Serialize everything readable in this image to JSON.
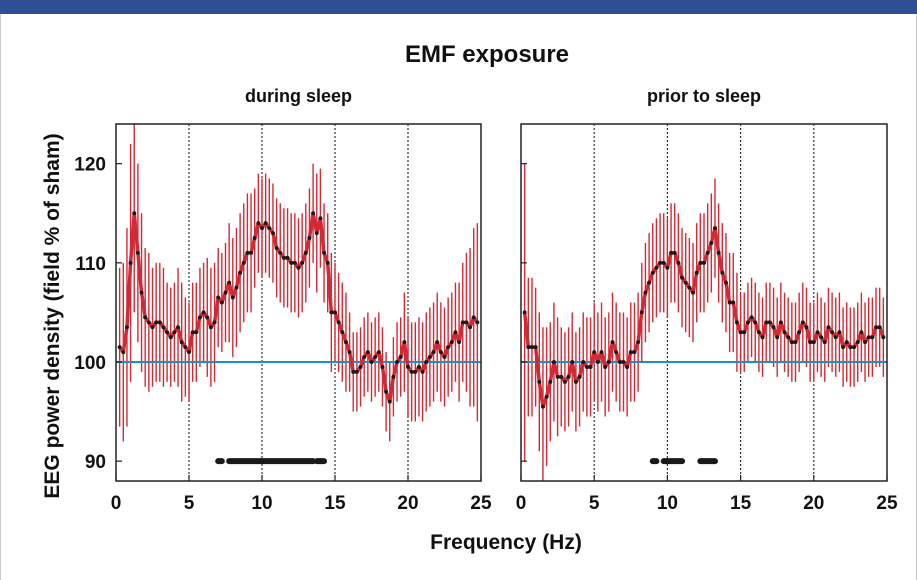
{
  "figure": {
    "title": "EMF exposure",
    "shared_ylabel": "EEG power density (field % of sham)",
    "shared_xlabel": "Frequency (Hz)"
  },
  "colors": {
    "frame_bar": "#2d4f96",
    "errorbar": "#d12a35",
    "line": "#d12a35",
    "marker": "#1a1a1a",
    "baseline": "#1f8fc8",
    "gridline": "#333333"
  },
  "chart_data": [
    {
      "type": "line",
      "subtitle": "during sleep",
      "xlabel": "Frequency (Hz)",
      "ylabel": "EEG power density (field % of sham)",
      "xlim": [
        0,
        25
      ],
      "ylim": [
        88,
        124
      ],
      "xticks": [
        0,
        5,
        10,
        15,
        20,
        25
      ],
      "yticks": [
        90,
        100,
        110,
        120
      ],
      "vertical_gridlines": [
        5,
        10,
        15,
        20
      ],
      "reference_line": 100,
      "series": [
        {
          "x": [
            0.25,
            0.5,
            0.75,
            1,
            1.25,
            1.5,
            1.75,
            2,
            2.25,
            2.5,
            2.75,
            3,
            3.25,
            3.5,
            3.75,
            4,
            4.25,
            4.5,
            4.75,
            5,
            5.25,
            5.5,
            5.75,
            6,
            6.25,
            6.5,
            6.75,
            7,
            7.25,
            7.5,
            7.75,
            8,
            8.25,
            8.5,
            8.75,
            9,
            9.25,
            9.5,
            9.75,
            10,
            10.25,
            10.5,
            10.75,
            11,
            11.25,
            11.5,
            11.75,
            12,
            12.25,
            12.5,
            12.75,
            13,
            13.25,
            13.5,
            13.75,
            14,
            14.25,
            14.5,
            14.75,
            15,
            15.25,
            15.5,
            15.75,
            16,
            16.25,
            16.5,
            16.75,
            17,
            17.25,
            17.5,
            17.75,
            18,
            18.25,
            18.5,
            18.75,
            19,
            19.25,
            19.5,
            19.75,
            20,
            20.25,
            20.5,
            20.75,
            21,
            21.25,
            21.5,
            21.75,
            22,
            22.25,
            22.5,
            22.75,
            23,
            23.25,
            23.5,
            23.75,
            24,
            24.25,
            24.5,
            24.75
          ],
          "y": [
            101.5,
            101,
            103.5,
            110,
            115,
            111,
            107,
            104.5,
            104,
            103.5,
            104,
            104,
            103.5,
            103,
            102.5,
            103,
            103.5,
            102,
            101.5,
            101,
            103,
            103,
            104.5,
            105,
            104.5,
            103.5,
            104,
            106.5,
            106,
            107,
            108,
            106.5,
            107.5,
            109,
            110,
            111,
            111,
            112.5,
            114,
            113.5,
            114,
            113.5,
            113,
            111.5,
            111,
            110.5,
            110.5,
            110,
            110,
            109.5,
            110,
            111,
            112.5,
            115,
            113,
            114.5,
            111,
            110,
            105,
            105,
            104,
            103,
            102,
            101,
            99,
            99,
            99.5,
            100.5,
            101,
            100,
            100.5,
            101,
            99.5,
            97,
            96,
            98.5,
            100,
            100.5,
            102,
            99.5,
            99,
            99,
            99.5,
            99,
            100,
            100.5,
            101,
            102,
            101,
            100.5,
            101.5,
            102,
            103,
            102,
            104,
            104,
            103.5,
            104.5,
            104
          ],
          "err": [
            8,
            9,
            10,
            12,
            10,
            9,
            8,
            7,
            7,
            6,
            6,
            6,
            6,
            5,
            5,
            5,
            6,
            6,
            5,
            5,
            5,
            5,
            5,
            5,
            6,
            6,
            6,
            5,
            5,
            5,
            6,
            6,
            6,
            6,
            6,
            6,
            6,
            5,
            5,
            5,
            5,
            5,
            5,
            5,
            5,
            5,
            5,
            5,
            5,
            5,
            5,
            5,
            5,
            5,
            6,
            5,
            5,
            5,
            6,
            5,
            5,
            5,
            5,
            4,
            4,
            4,
            4,
            4,
            4,
            4,
            4,
            4,
            4,
            4,
            4,
            4,
            4,
            4,
            5,
            5,
            5,
            5,
            5,
            5,
            5,
            5,
            5,
            5,
            5,
            5,
            5,
            5,
            5,
            6,
            6,
            7,
            8,
            9,
            10
          ]
        }
      ],
      "significance_bars": [
        [
          7,
          7.25
        ],
        [
          7.75,
          13.5
        ],
        [
          13.75,
          14.25
        ]
      ]
    },
    {
      "type": "line",
      "subtitle": "prior to sleep",
      "xlabel": "Frequency (Hz)",
      "ylabel": "",
      "xlim": [
        0,
        25
      ],
      "ylim": [
        88,
        124
      ],
      "xticks": [
        0,
        5,
        10,
        15,
        20,
        25
      ],
      "yticks": [
        90,
        100,
        110,
        120
      ],
      "vertical_gridlines": [
        5,
        10,
        15,
        20
      ],
      "reference_line": 100,
      "series": [
        {
          "x": [
            0.25,
            0.5,
            0.75,
            1,
            1.25,
            1.5,
            1.75,
            2,
            2.25,
            2.5,
            2.75,
            3,
            3.25,
            3.5,
            3.75,
            4,
            4.25,
            4.5,
            4.75,
            5,
            5.25,
            5.5,
            5.75,
            6,
            6.25,
            6.5,
            6.75,
            7,
            7.25,
            7.5,
            7.75,
            8,
            8.25,
            8.5,
            8.75,
            9,
            9.25,
            9.5,
            9.75,
            10,
            10.25,
            10.5,
            10.75,
            11,
            11.25,
            11.5,
            11.75,
            12,
            12.25,
            12.5,
            12.75,
            13,
            13.25,
            13.5,
            13.75,
            14,
            14.25,
            14.5,
            14.75,
            15,
            15.25,
            15.5,
            15.75,
            16,
            16.25,
            16.5,
            16.75,
            17,
            17.25,
            17.5,
            17.75,
            18,
            18.25,
            18.5,
            18.75,
            19,
            19.25,
            19.5,
            19.75,
            20,
            20.25,
            20.5,
            20.75,
            21,
            21.25,
            21.5,
            21.75,
            22,
            22.25,
            22.5,
            22.75,
            23,
            23.25,
            23.5,
            23.75,
            24,
            24.25,
            24.5,
            24.75
          ],
          "y": [
            105,
            101.5,
            101.5,
            101.5,
            98,
            95.5,
            96.5,
            98,
            100,
            98.5,
            98.5,
            98,
            98.5,
            100,
            98,
            98.5,
            100,
            99.5,
            99.5,
            101,
            100,
            101,
            99.5,
            100,
            102,
            101,
            100,
            100,
            99.5,
            101,
            101,
            102,
            105,
            107,
            108,
            109,
            109.5,
            110,
            110,
            109.5,
            111,
            111,
            110,
            108.5,
            108,
            107.5,
            107,
            109,
            110,
            110,
            111,
            112,
            113.5,
            111,
            109,
            108,
            106,
            106,
            104,
            103,
            103,
            104,
            104.5,
            104,
            103,
            102.5,
            104,
            104,
            103.5,
            102.5,
            104,
            103,
            102.5,
            102,
            102,
            103,
            104,
            103.5,
            102,
            102,
            103,
            102.5,
            102,
            103.5,
            103,
            102.5,
            103,
            101.5,
            102,
            101.5,
            101.5,
            102,
            103,
            102,
            102.5,
            102.5,
            103.5,
            103.5,
            102.5
          ],
          "err": [
            15,
            7,
            7,
            6,
            7,
            8,
            7,
            6,
            6,
            6,
            5,
            5,
            5,
            5,
            5,
            5,
            5,
            5,
            5,
            5,
            5,
            5,
            5,
            5,
            5,
            5,
            5,
            5,
            5,
            5,
            5,
            5,
            5,
            5,
            5,
            5,
            5,
            5,
            5,
            5,
            5,
            5,
            5,
            5,
            5,
            5,
            5,
            5,
            5,
            5,
            5,
            5,
            5,
            5,
            5,
            5,
            5,
            5,
            5,
            4,
            4,
            4,
            4,
            4,
            4,
            4,
            4,
            4,
            4,
            4,
            4,
            4,
            4,
            4,
            4,
            4,
            4,
            4,
            4,
            4,
            4,
            4,
            4,
            4,
            4,
            4,
            4,
            4,
            4,
            4,
            4,
            4,
            4,
            4,
            4,
            4,
            4,
            4,
            4
          ]
        }
      ],
      "significance_bars": [
        [
          9,
          9.25
        ],
        [
          9.75,
          11
        ],
        [
          12.25,
          13.25
        ]
      ]
    }
  ]
}
